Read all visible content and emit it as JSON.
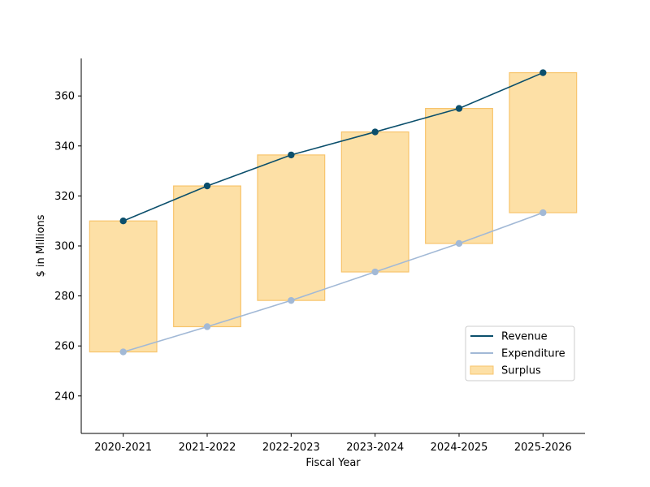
{
  "chart_data": {
    "type": "bar",
    "title": "",
    "xlabel": "Fiscal Year",
    "ylabel": "$ in Millions",
    "categories": [
      "2020-2021",
      "2021-2022",
      "2022-2023",
      "2023-2024",
      "2024-2025",
      "2025-2026"
    ],
    "series": [
      {
        "name": "Revenue",
        "kind": "line",
        "values": [
          310.0,
          324.0,
          336.4,
          345.6,
          355.0,
          369.3
        ]
      },
      {
        "name": "Expenditure",
        "kind": "line",
        "values": [
          257.6,
          267.7,
          278.2,
          289.6,
          301.0,
          313.3
        ]
      },
      {
        "name": "Surplus",
        "kind": "floating-bar",
        "low": [
          257.6,
          267.7,
          278.2,
          289.6,
          301.0,
          313.3
        ],
        "high": [
          310.0,
          324.0,
          336.4,
          345.6,
          355.0,
          369.3
        ]
      }
    ],
    "ylim": [
      225,
      375
    ],
    "yticks": [
      240,
      260,
      280,
      300,
      320,
      340,
      360
    ],
    "grid": false,
    "legend": "lower-right",
    "colors": {
      "revenue": "#0b4f6c",
      "expenditure": "#a2b9d6",
      "surplus_fill": "#fde0a6",
      "surplus_edge": "#f7c46c"
    }
  }
}
